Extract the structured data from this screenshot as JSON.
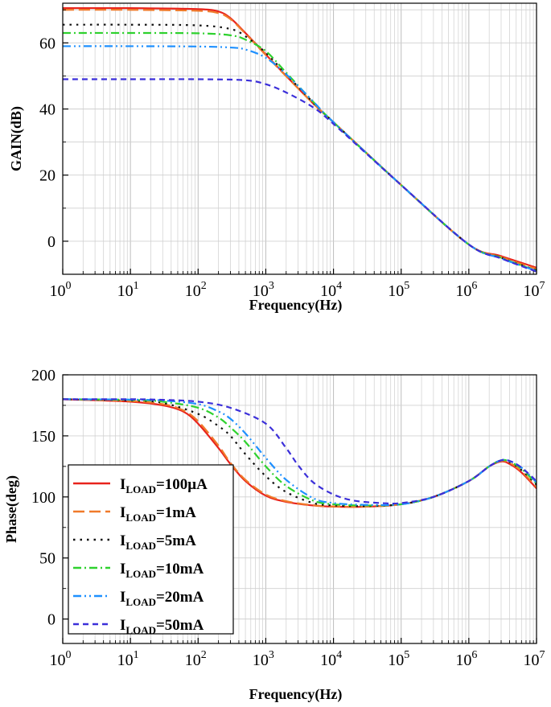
{
  "chart_data": [
    {
      "type": "line",
      "xscale": "log",
      "xlim": [
        1,
        10000000
      ],
      "ylim": [
        -10,
        72
      ],
      "xlabel": "Frequency(Hz)",
      "ylabel": "GAIN(dB)",
      "x_ticks": [
        {
          "base": "10",
          "exp": "0",
          "value": 1
        },
        {
          "base": "10",
          "exp": "1",
          "value": 10
        },
        {
          "base": "10",
          "exp": "2",
          "value": 100
        },
        {
          "base": "10",
          "exp": "3",
          "value": 1000
        },
        {
          "base": "10",
          "exp": "4",
          "value": 10000
        },
        {
          "base": "10",
          "exp": "5",
          "value": 100000
        },
        {
          "base": "10",
          "exp": "6",
          "value": 1000000
        },
        {
          "base": "10",
          "exp": "7",
          "value": 10000000
        }
      ],
      "y_ticks": [
        "0",
        "20",
        "40",
        "60"
      ],
      "grid": true,
      "series": [
        {
          "color": "#e8231c",
          "dash": "solid",
          "x": [
            1,
            10,
            100,
            200,
            300,
            500,
            1000,
            2000,
            5000,
            10000,
            100000,
            1000000,
            3000000,
            10000000
          ],
          "y": [
            70.5,
            70.5,
            70.2,
            69.5,
            67.5,
            63,
            56.5,
            50,
            41.7,
            36,
            17,
            -1,
            -4.5,
            -8
          ]
        },
        {
          "color": "#f07a2a",
          "dash": "long-dash",
          "x": [
            1,
            10,
            100,
            200,
            300,
            500,
            1000,
            2000,
            5000,
            10000,
            100000,
            1000000,
            3000000,
            10000000
          ],
          "y": [
            70,
            70,
            69.7,
            69,
            67.2,
            62.8,
            56.3,
            49.9,
            41.7,
            36,
            17,
            -1,
            -4.8,
            -8.4
          ]
        },
        {
          "color": "#111111",
          "dash": "dot",
          "x": [
            1,
            10,
            100,
            300,
            500,
            1000,
            2000,
            5000,
            10000,
            100000,
            1000000,
            3000000,
            10000000
          ],
          "y": [
            65.5,
            65.5,
            65.3,
            64.2,
            62,
            57,
            50.5,
            42,
            36,
            17,
            -1,
            -5,
            -8.8
          ]
        },
        {
          "color": "#2ed12e",
          "dash": "dash-dot",
          "x": [
            1,
            10,
            100,
            300,
            500,
            1000,
            2000,
            5000,
            10000,
            100000,
            1000000,
            3000000,
            10000000
          ],
          "y": [
            63,
            63,
            62.9,
            62.3,
            61,
            57.5,
            51,
            42.2,
            36,
            17,
            -1,
            -5,
            -9
          ]
        },
        {
          "color": "#1e90ff",
          "dash": "dash-dot-dot",
          "x": [
            1,
            10,
            100,
            300,
            500,
            1000,
            2000,
            5000,
            10000,
            100000,
            1000000,
            3000000,
            10000000
          ],
          "y": [
            59,
            59,
            58.9,
            58.6,
            58,
            55.5,
            50.5,
            42.3,
            36,
            17,
            -1,
            -5.2,
            -9
          ]
        },
        {
          "color": "#3b2fd9",
          "dash": "short-dash",
          "x": [
            1,
            10,
            100,
            500,
            1000,
            2000,
            5000,
            10000,
            100000,
            1000000,
            3000000,
            10000000
          ],
          "y": [
            49,
            49,
            49,
            48.7,
            47.5,
            45,
            40.5,
            35.5,
            17,
            -1,
            -5.2,
            -9.2
          ]
        }
      ]
    },
    {
      "type": "line",
      "xscale": "log",
      "xlim": [
        1,
        10000000
      ],
      "ylim": [
        -20,
        200
      ],
      "xlabel": "Frequency(Hz)",
      "ylabel": "Phase(deg)",
      "x_ticks": [
        {
          "base": "10",
          "exp": "0",
          "value": 1
        },
        {
          "base": "10",
          "exp": "1",
          "value": 10
        },
        {
          "base": "10",
          "exp": "2",
          "value": 100
        },
        {
          "base": "10",
          "exp": "3",
          "value": 1000
        },
        {
          "base": "10",
          "exp": "4",
          "value": 10000
        },
        {
          "base": "10",
          "exp": "5",
          "value": 100000
        },
        {
          "base": "10",
          "exp": "6",
          "value": 1000000
        },
        {
          "base": "10",
          "exp": "7",
          "value": 10000000
        }
      ],
      "y_ticks": [
        "0",
        "50",
        "100",
        "150",
        "200"
      ],
      "grid": true,
      "legend_position": "left",
      "series": [
        {
          "label_main": "I",
          "label_sub": "LOAD",
          "label_rest": "=100μA",
          "color": "#e8231c",
          "dash": "solid",
          "x": [
            1,
            10,
            30,
            60,
            100,
            200,
            300,
            500,
            1000,
            2000,
            5000,
            10000,
            30000,
            100000,
            300000,
            1000000,
            2000000,
            3000000,
            4000000,
            6000000,
            10000000
          ],
          "y": [
            180,
            178,
            175,
            170,
            160,
            140,
            127,
            113,
            101,
            96,
            93,
            92,
            92,
            94,
            100,
            113,
            125,
            129,
            127,
            120,
            107
          ]
        },
        {
          "label_main": "I",
          "label_sub": "LOAD",
          "label_rest": "=1mA",
          "color": "#f07a2a",
          "dash": "long-dash",
          "x": [
            1,
            10,
            30,
            60,
            100,
            200,
            300,
            500,
            1000,
            2000,
            5000,
            10000,
            30000,
            100000,
            300000,
            1000000,
            2000000,
            3000000,
            4000000,
            6000000,
            10000000
          ],
          "y": [
            180,
            178.5,
            176,
            171,
            162,
            142,
            128,
            114,
            102,
            96.5,
            93.2,
            92.2,
            92,
            94,
            100,
            113,
            125,
            129.5,
            128,
            121,
            108
          ]
        },
        {
          "label_main": "I",
          "label_sub": "LOAD",
          "label_rest": "=5mA",
          "color": "#111111",
          "dash": "dot",
          "x": [
            1,
            10,
            30,
            100,
            200,
            300,
            500,
            1000,
            2000,
            5000,
            10000,
            30000,
            100000,
            300000,
            1000000,
            2000000,
            3000000,
            4000000,
            6000000,
            10000000
          ],
          "y": [
            180,
            179,
            177,
            168,
            158,
            150,
            135,
            117,
            104,
            95,
            93,
            92.5,
            94,
            100,
            113,
            125,
            130,
            128.5,
            122,
            110
          ]
        },
        {
          "label_main": "I",
          "label_sub": "LOAD",
          "label_rest": "=10mA",
          "color": "#2ed12e",
          "dash": "dash-dot",
          "x": [
            1,
            10,
            30,
            100,
            200,
            300,
            500,
            1000,
            2000,
            5000,
            10000,
            30000,
            100000,
            300000,
            1000000,
            2000000,
            3000000,
            4000000,
            6000000,
            10000000
          ],
          "y": [
            180,
            179.5,
            178,
            173,
            165,
            157,
            145,
            125,
            109,
            97,
            94,
            93,
            94,
            100,
            113,
            125,
            130,
            129,
            123,
            111
          ]
        },
        {
          "label_main": "I",
          "label_sub": "LOAD",
          "label_rest": "=20mA",
          "color": "#1e90ff",
          "dash": "dash-dot-dot",
          "x": [
            1,
            10,
            30,
            100,
            200,
            300,
            500,
            1000,
            2000,
            5000,
            10000,
            30000,
            100000,
            300000,
            1000000,
            2000000,
            3000000,
            4000000,
            6000000,
            10000000
          ],
          "y": [
            180,
            179.7,
            179,
            176,
            170,
            164,
            152,
            132,
            114,
            99,
            95,
            93.5,
            94,
            100,
            113,
            125,
            130,
            129.5,
            124,
            112
          ]
        },
        {
          "label_main": "I",
          "label_sub": "LOAD",
          "label_rest": "=50mA",
          "color": "#3b2fd9",
          "dash": "short-dash",
          "x": [
            1,
            10,
            30,
            100,
            300,
            1000,
            2000,
            3000,
            5000,
            10000,
            20000,
            50000,
            100000,
            300000,
            1000000,
            2000000,
            3000000,
            4000000,
            6000000,
            10000000
          ],
          "y": [
            180,
            180,
            179.5,
            178,
            173,
            160,
            140,
            126,
            112,
            102,
            97,
            95,
            95,
            100,
            113,
            125,
            130,
            129.5,
            124,
            113
          ]
        }
      ]
    }
  ]
}
